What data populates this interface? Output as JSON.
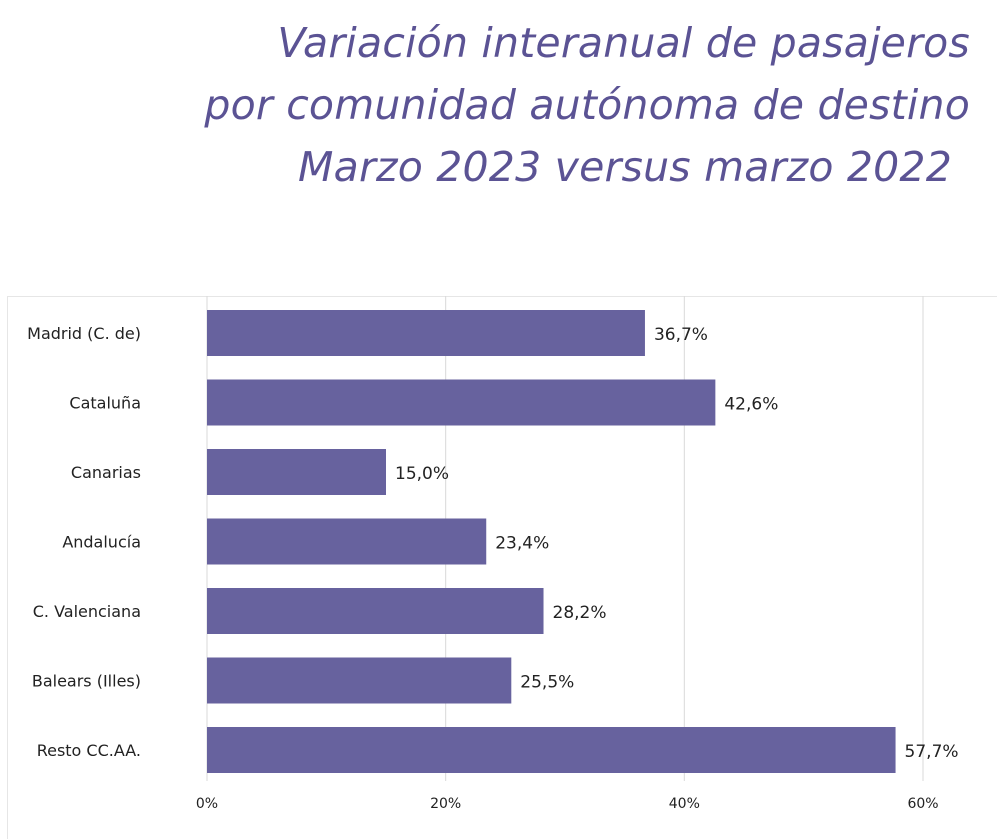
{
  "title": {
    "line1": "Variación interanual de pasajeros",
    "line2": "por comunidad autónoma de destino",
    "line3": "Marzo 2023 versus marzo 2022"
  },
  "chart_data": {
    "type": "bar",
    "orientation": "horizontal",
    "title": "Variación interanual de pasajeros por comunidad autónoma de destino Marzo 2023 versus marzo 2022",
    "categories": [
      "Madrid (C. de)",
      "Cataluña",
      "Canarias",
      "Andalucía",
      "C. Valenciana",
      "Balears (Illes)",
      "Resto CC.AA."
    ],
    "values": [
      36.7,
      42.6,
      15.0,
      23.4,
      28.2,
      25.5,
      57.7
    ],
    "value_labels": [
      "36,7%",
      "42,6%",
      "15,0%",
      "23,4%",
      "28,2%",
      "25,5%",
      "57,7%"
    ],
    "xlim": [
      0,
      60
    ],
    "x_ticks": [
      0,
      20,
      40,
      60
    ],
    "x_tick_labels": [
      "0%",
      "20%",
      "40%",
      "60%"
    ],
    "xlabel": "",
    "ylabel": "",
    "grid": true,
    "legend": "none",
    "bar_color": "#67629e",
    "grid_color": "#d9d9d9"
  }
}
